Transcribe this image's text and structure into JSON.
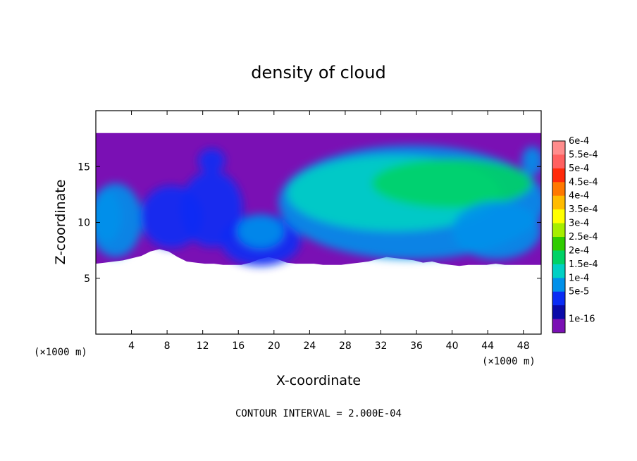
{
  "chart_data": {
    "type": "heatmap",
    "title": "density of cloud",
    "xlabel": "X-coordinate",
    "ylabel": "Z-coordinate",
    "x_units": "(×1000 m)",
    "z_units": "(×1000 m)",
    "xlim": [
      0,
      50
    ],
    "ylim": [
      0,
      20
    ],
    "x_ticks": [
      4,
      8,
      12,
      16,
      20,
      24,
      28,
      32,
      36,
      40,
      44,
      48
    ],
    "y_ticks": [
      5,
      10,
      15
    ],
    "footer": "CONTOUR INTERVAL = 2.000E-04",
    "colorbar": {
      "labels": [
        "6e-4",
        "5.5e-4",
        "5e-4",
        "4.5e-4",
        "4e-4",
        "3.5e-4",
        "3e-4",
        "2.5e-4",
        "2e-4",
        "1.5e-4",
        "1e-4",
        "5e-5",
        "1e-16"
      ],
      "colors": [
        "#ff8c8c",
        "#ff6060",
        "#ff2a0a",
        "#ff7800",
        "#ffbb00",
        "#ffff00",
        "#a6ee00",
        "#2fcc00",
        "#00d266",
        "#00d0c4",
        "#0090ea",
        "#0a2cf4",
        "#0a0aa8",
        "#7a10b4"
      ]
    },
    "cloud_layer": {
      "top_z": 18,
      "base_z": [
        6.3,
        6.4,
        6.5,
        6.6,
        6.8,
        7,
        7.4,
        7.6,
        7.4,
        6.9,
        6.5,
        6.4,
        6.3,
        6.3,
        6.2,
        6.2,
        6.2,
        6.4,
        6.7,
        6.9,
        6.7,
        6.4,
        6.3,
        6.3,
        6.3,
        6.2,
        6.2,
        6.2,
        6.3,
        6.4,
        6.5,
        6.7,
        6.9,
        6.8,
        6.7,
        6.6,
        6.4,
        6.5,
        6.3,
        6.2,
        6.1,
        6.2,
        6.2,
        6.2,
        6.3,
        6.2,
        6.2,
        6.2,
        6.2,
        6.2
      ],
      "patches": [
        {
          "x": 2.2,
          "z": 10.2,
          "rx": 3,
          "rz": 3.3,
          "value": 0.0001
        },
        {
          "x": 1.3,
          "z": 10.5,
          "rx": 1.6,
          "rz": 2.3,
          "value": 0.00013
        },
        {
          "x": 8.5,
          "z": 10.5,
          "rx": 3.5,
          "rz": 2.8,
          "value": 6e-05
        },
        {
          "x": 13,
          "z": 11.2,
          "rx": 3.5,
          "rz": 3.4,
          "value": 5e-05
        },
        {
          "x": 13,
          "z": 15.5,
          "rx": 1.5,
          "rz": 1.1,
          "value": 5e-05
        },
        {
          "x": 18.5,
          "z": 8.4,
          "rx": 4.5,
          "rz": 2.3,
          "value": 8e-05
        },
        {
          "x": 18.5,
          "z": 9.2,
          "rx": 2.6,
          "rz": 1.5,
          "value": 0.00011
        },
        {
          "x": 35.5,
          "z": 11.8,
          "rx": 15,
          "rz": 5.1,
          "value": 0.00011
        },
        {
          "x": 33.5,
          "z": 12.6,
          "rx": 12,
          "rz": 3.4,
          "value": 0.00016
        },
        {
          "x": 40,
          "z": 13.5,
          "rx": 9,
          "rz": 2.2,
          "value": 0.0002
        },
        {
          "x": 45,
          "z": 9.3,
          "rx": 5,
          "rz": 2.6,
          "value": 0.00011
        },
        {
          "x": 49,
          "z": 15.5,
          "rx": 1.2,
          "rz": 1.3,
          "value": 0.0001
        }
      ]
    }
  }
}
